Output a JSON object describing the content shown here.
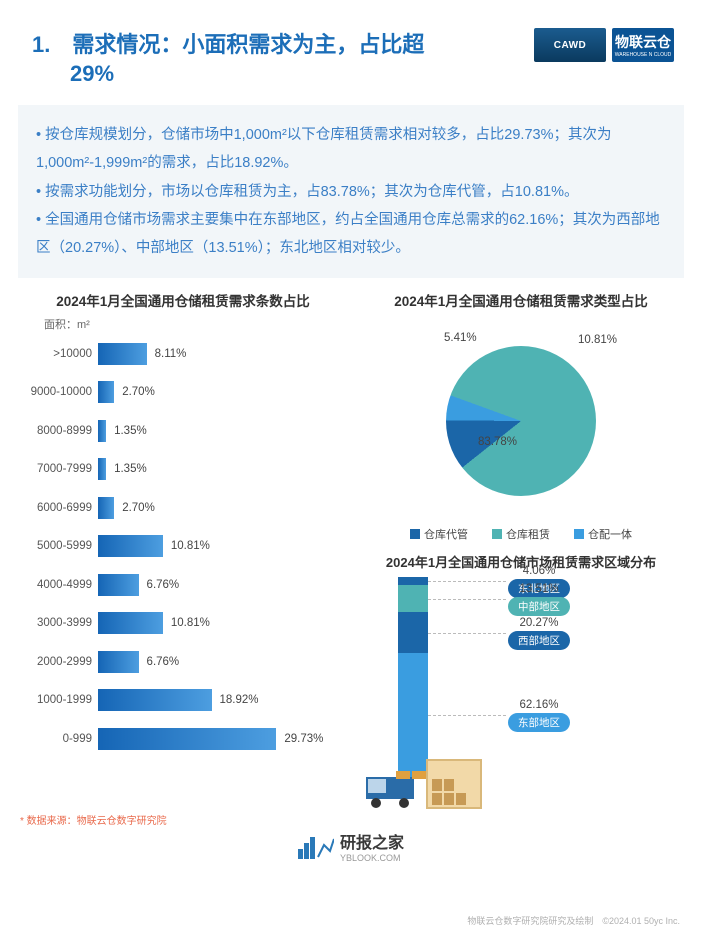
{
  "header": {
    "title_line1": "1.　需求情况：小面积需求为主，占比超",
    "title_line2": "29%",
    "logo_cawd": "CAWD",
    "logo_wc_top": "物联云仓",
    "logo_wc_sub": "WAREHOUSE N CLOUD"
  },
  "bullets": [
    "• 按仓库规模划分，仓储市场中1,000m²以下仓库租赁需求相对较多，占比29.73%；其次为1,000m²-1,999m²的需求，占比18.92%。",
    "• 按需求功能划分，市场以仓库租赁为主，占83.78%；其次为仓库代管，占10.81%。",
    "• 全国通用仓储市场需求主要集中在东部地区，约占全国通用仓库总需求的62.16%；其次为西部地区（20.27%）、中部地区（13.51%）；东北地区相对较少。"
  ],
  "bar_chart": {
    "title": "2024年1月全国通用仓储租赁需求条数占比",
    "axis_label": "面积：m²",
    "max_value": 30,
    "bar_gradient_from": "#1565b5",
    "bar_gradient_to": "#4d9ee0",
    "categories": [
      {
        "label": ">10000",
        "value": 8.11,
        "display": "8.11%"
      },
      {
        "label": "9000-10000",
        "value": 2.7,
        "display": "2.70%"
      },
      {
        "label": "8000-8999",
        "value": 1.35,
        "display": "1.35%"
      },
      {
        "label": "7000-7999",
        "value": 1.35,
        "display": "1.35%"
      },
      {
        "label": "6000-6999",
        "value": 2.7,
        "display": "2.70%"
      },
      {
        "label": "5000-5999",
        "value": 10.81,
        "display": "10.81%"
      },
      {
        "label": "4000-4999",
        "value": 6.76,
        "display": "6.76%"
      },
      {
        "label": "3000-3999",
        "value": 10.81,
        "display": "10.81%"
      },
      {
        "label": "2000-2999",
        "value": 6.76,
        "display": "6.76%"
      },
      {
        "label": "1000-1999",
        "value": 18.92,
        "display": "18.92%"
      },
      {
        "label": "0-999",
        "value": 29.73,
        "display": "29.73%"
      }
    ]
  },
  "pie_chart": {
    "title": "2024年1月全国通用仓储租赁需求类型占比",
    "slices": [
      {
        "name": "仓库租赁",
        "value": 83.78,
        "color": "#4fb3b3",
        "display": "83.78%"
      },
      {
        "name": "仓库代管",
        "value": 10.81,
        "color": "#1b66a8",
        "display": "10.81%"
      },
      {
        "name": "仓配一体",
        "value": 5.41,
        "color": "#3a9de0",
        "display": "5.41%"
      }
    ],
    "legend": [
      "仓库代管",
      "仓库租赁",
      "仓配一体"
    ],
    "legend_colors": [
      "#1b66a8",
      "#4fb3b3",
      "#3a9de0"
    ]
  },
  "region_chart": {
    "title": "2024年1月全国通用仓储市场租赁需求区域分布",
    "regions": [
      {
        "name": "东北地区",
        "value": 4.06,
        "display": "4.06%",
        "color": "#1b66a8"
      },
      {
        "name": "中部地区",
        "value": 13.51,
        "display": "13.51%",
        "color": "#4fb3b3"
      },
      {
        "name": "西部地区",
        "value": 20.27,
        "display": "20.27%",
        "color": "#1b66a8"
      },
      {
        "name": "东部地区",
        "value": 62.16,
        "display": "62.16%",
        "color": "#3a9de0"
      }
    ],
    "stack_height": 200
  },
  "footnote": "* 数据来源：物联云仓数字研究院",
  "footer": {
    "brand": "研报之家",
    "url": "YBLOOK.COM"
  },
  "copyright": "物联云仓数字研究院研究及绘制　©2024.01 50yc Inc."
}
